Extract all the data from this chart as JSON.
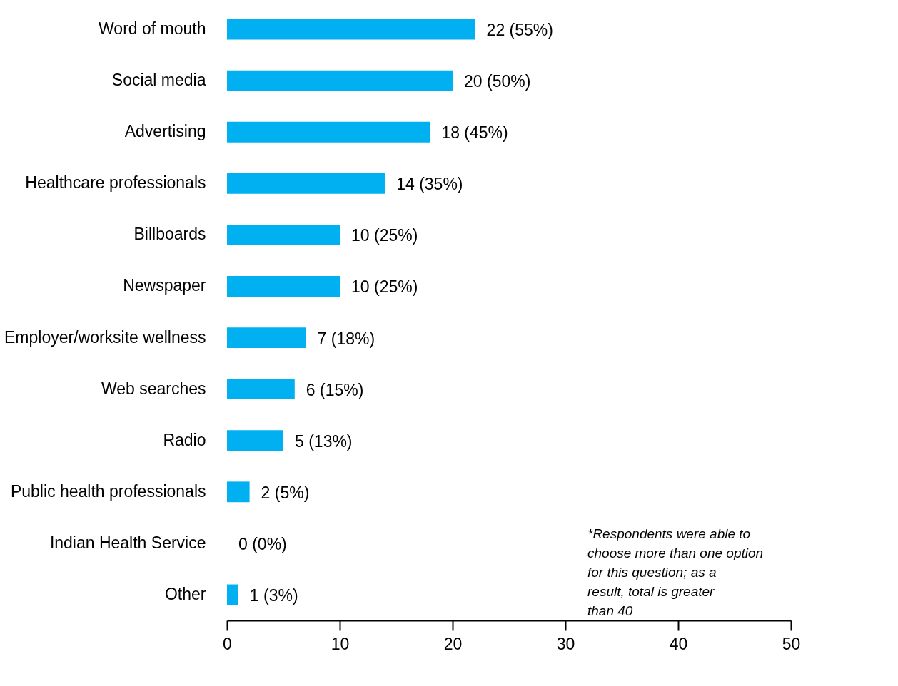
{
  "chart_data": {
    "type": "bar",
    "orientation": "horizontal",
    "categories": [
      "Word of mouth",
      "Social media",
      "Advertising",
      "Healthcare professionals",
      "Billboards",
      "Newspaper",
      "Employer/worksite wellness",
      "Web searches",
      "Radio",
      "Public health professionals",
      "Indian Health Service",
      "Other"
    ],
    "values": [
      22,
      20,
      18,
      14,
      10,
      10,
      7,
      6,
      5,
      2,
      0,
      1
    ],
    "value_labels": [
      "22 (55%)",
      "20 (50%)",
      "18 (45%)",
      "14 (35%)",
      "10 (25%)",
      "10 (25%)",
      "7 (18%)",
      "6 (15%)",
      "5 (13%)",
      "2 (5%)",
      "0 (0%)",
      "1 (3%)"
    ],
    "color": "#00b0f0",
    "xlim": [
      0,
      50
    ],
    "xticks": [
      0,
      10,
      20,
      30,
      40,
      50
    ],
    "grid": false,
    "annotations": [
      "*Respondents were able to choose more than one option for this question; as a result, total is greater than 40"
    ]
  }
}
